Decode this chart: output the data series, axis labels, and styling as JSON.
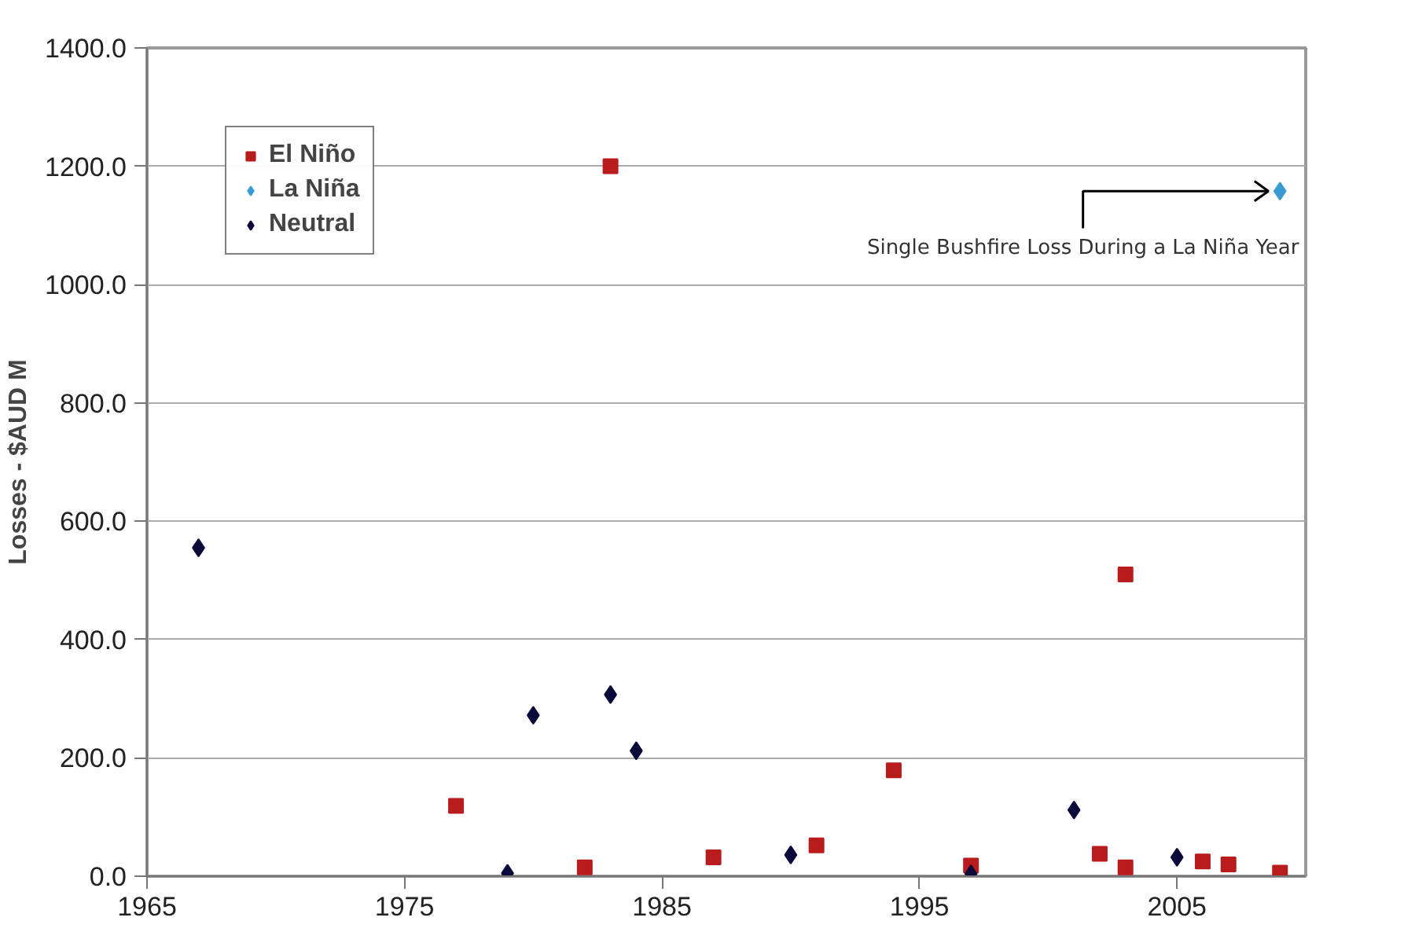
{
  "chart_data": {
    "type": "scatter",
    "ylabel": "Losses - $AUD M",
    "xlim": [
      1965,
      2010
    ],
    "xticks": [
      1965,
      1975,
      1985,
      1995,
      2005
    ],
    "ylim": [
      0,
      1400
    ],
    "yticks": [
      {
        "value": 0,
        "label": "0.0"
      },
      {
        "value": 200,
        "label": "200.0"
      },
      {
        "value": 400,
        "label": "400.0"
      },
      {
        "value": 600,
        "label": "600.0"
      },
      {
        "value": 800,
        "label": "800.0"
      },
      {
        "value": 1000,
        "label": "1000.0"
      },
      {
        "value": 1200,
        "label": "1200.0"
      },
      {
        "value": 1400,
        "label": "1400.0"
      }
    ],
    "grid": "y",
    "legend": "top left",
    "series": [
      {
        "name": "El Niño",
        "color": "#b81c1c",
        "marker": "square",
        "x": [
          1977,
          1982,
          1983,
          1987,
          1991,
          1994,
          1997,
          2002,
          2003,
          2003,
          2006,
          2007,
          2009
        ],
        "values": [
          119,
          15,
          1200,
          32,
          52,
          179,
          18,
          38,
          510,
          15,
          25,
          20,
          6
        ]
      },
      {
        "name": "La Niña",
        "color": "#3a9bd0",
        "marker": "diamond",
        "x": [
          2009
        ],
        "values": [
          1158
        ]
      },
      {
        "name": "Neutral",
        "color": "#0b0b3b",
        "marker": "diamond",
        "x": [
          1967,
          1979,
          1980,
          1983,
          1984,
          1990,
          1997,
          2001,
          2005
        ],
        "values": [
          555,
          5,
          272,
          307,
          212,
          36,
          4,
          112,
          32
        ]
      }
    ],
    "annotations": [
      {
        "text": "Single Bushfire Loss During a La Niña Year",
        "x": 2009,
        "y": 1158
      }
    ]
  }
}
